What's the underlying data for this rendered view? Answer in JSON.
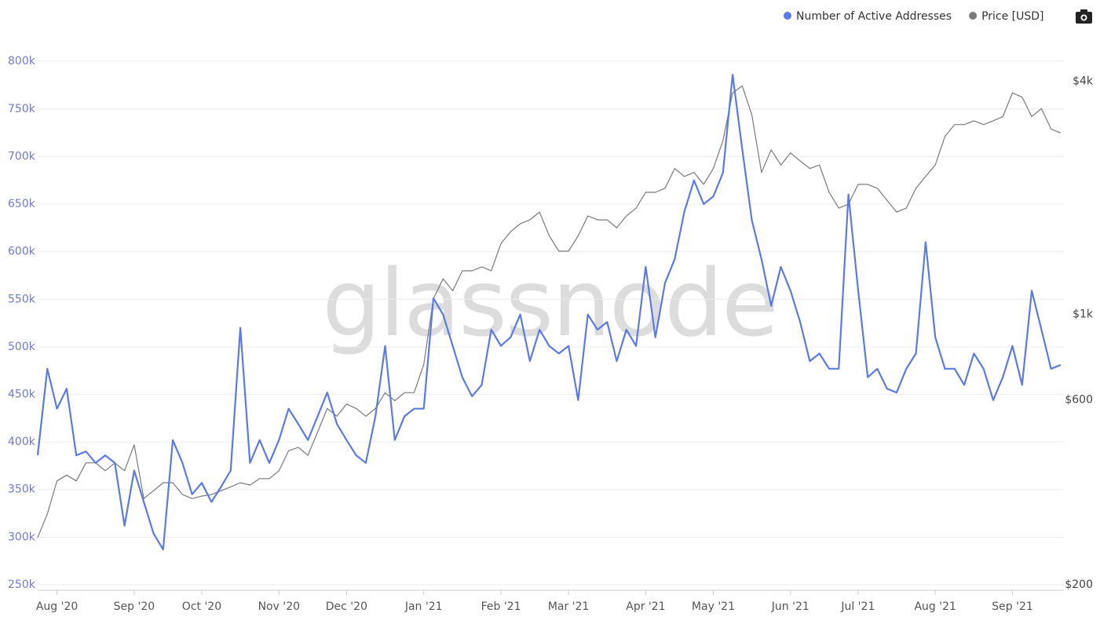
{
  "chart_data": {
    "type": "line",
    "watermark": "glassnode",
    "categories": [
      null,
      null,
      "Aug '20",
      null,
      null,
      null,
      null,
      null,
      null,
      null,
      "Sep '20",
      null,
      null,
      null,
      null,
      null,
      null,
      "Oct '20",
      null,
      null,
      null,
      null,
      null,
      null,
      null,
      "Nov '20",
      null,
      null,
      null,
      null,
      null,
      null,
      "Dec '20",
      null,
      null,
      null,
      null,
      null,
      null,
      null,
      "Jan '21",
      null,
      null,
      null,
      null,
      null,
      null,
      null,
      "Feb '21",
      null,
      null,
      null,
      null,
      null,
      null,
      "Mar '21",
      null,
      null,
      null,
      null,
      null,
      null,
      null,
      "Apr '21",
      null,
      null,
      null,
      null,
      null,
      null,
      "May '21",
      null,
      null,
      null,
      null,
      null,
      null,
      null,
      "Jun '21",
      null,
      null,
      null,
      null,
      null,
      null,
      "Jul '21",
      null,
      null,
      null,
      null,
      null,
      null,
      null,
      "Aug '21",
      null,
      null,
      null,
      null,
      null,
      null,
      null,
      "Sep '21",
      null,
      null,
      null,
      null,
      null
    ],
    "series": [
      {
        "name": "Number of Active Addresses",
        "color": "#5b7be0",
        "axis": "y",
        "values": [
          386000,
          477000,
          435000,
          456000,
          386000,
          390000,
          378000,
          386000,
          378000,
          312000,
          370000,
          337000,
          304000,
          287000,
          402000,
          378000,
          345000,
          357000,
          337000,
          353000,
          370000,
          520000,
          378000,
          402000,
          378000,
          402000,
          435000,
          419000,
          402000,
          427000,
          452000,
          419000,
          402000,
          386000,
          378000,
          427000,
          501000,
          402000,
          427000,
          435000,
          435000,
          551000,
          534000,
          501000,
          468000,
          448000,
          460000,
          518000,
          501000,
          510000,
          534000,
          485000,
          518000,
          501000,
          493000,
          501000,
          444000,
          534000,
          518000,
          526000,
          485000,
          518000,
          501000,
          584000,
          510000,
          567000,
          592000,
          642000,
          675000,
          650000,
          658000,
          683000,
          786000,
          708000,
          633000,
          592000,
          543000,
          584000,
          559000,
          526000,
          485000,
          493000,
          477000,
          477000,
          660000,
          560000,
          468000,
          477000,
          456000,
          452000,
          477000,
          493000,
          610000,
          510000,
          477000,
          477000,
          460000,
          493000,
          477000,
          444000,
          468000,
          501000,
          460000,
          559000,
          518000,
          477000,
          481000
        ]
      },
      {
        "name": "Price [USD]",
        "color": "#7a7a7a",
        "axis": "y2",
        "values": [
          265,
          305,
          371,
          384,
          371,
          413,
          413,
          394,
          413,
          394,
          460,
          334,
          350,
          367,
          367,
          342,
          334,
          339,
          342,
          350,
          358,
          367,
          362,
          376,
          376,
          394,
          444,
          453,
          432,
          496,
          571,
          545,
          586,
          571,
          545,
          571,
          627,
          598,
          627,
          627,
          742,
          1097,
          1234,
          1150,
          1295,
          1295,
          1325,
          1295,
          1522,
          1634,
          1713,
          1753,
          1836,
          1595,
          1455,
          1455,
          1595,
          1795,
          1753,
          1753,
          1673,
          1795,
          1880,
          2066,
          2066,
          2115,
          2380,
          2270,
          2325,
          2165,
          2380,
          2810,
          3730,
          3890,
          3270,
          2325,
          2660,
          2430,
          2610,
          2490,
          2380,
          2430,
          2066,
          1880,
          1924,
          2165,
          2165,
          2115,
          1970,
          1836,
          1880,
          2115,
          2270,
          2430,
          2880,
          3090,
          3090,
          3160,
          3090,
          3160,
          3240,
          3730,
          3640,
          3240,
          3400,
          3010,
          2940
        ]
      }
    ],
    "ylim": [
      245000,
      815000
    ],
    "yticks": [
      {
        "value": 250000,
        "label": "250k"
      },
      {
        "value": 300000,
        "label": "300k"
      },
      {
        "value": 350000,
        "label": "350k"
      },
      {
        "value": 400000,
        "label": "400k"
      },
      {
        "value": 450000,
        "label": "450k"
      },
      {
        "value": 500000,
        "label": "500k"
      },
      {
        "value": 550000,
        "label": "550k"
      },
      {
        "value": 600000,
        "label": "600k"
      },
      {
        "value": 650000,
        "label": "650k"
      },
      {
        "value": 700000,
        "label": "700k"
      },
      {
        "value": 750000,
        "label": "750k"
      },
      {
        "value": 800000,
        "label": "800k"
      }
    ],
    "y2lim": [
      194.5,
      4900
    ],
    "y2log": true,
    "y2ticks": [
      {
        "value": 200,
        "label": "$200"
      },
      {
        "value": 600,
        "label": "$600"
      },
      {
        "value": 1000,
        "label": "$1k"
      },
      {
        "value": 4000,
        "label": "$4k"
      }
    ],
    "grid": true,
    "legend": "top-right"
  }
}
